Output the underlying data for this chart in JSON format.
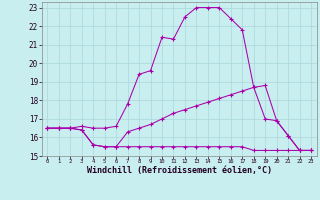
{
  "xlabel": "Windchill (Refroidissement éolien,°C)",
  "xlim": [
    -0.5,
    23.5
  ],
  "ylim": [
    15,
    23.3
  ],
  "yticks": [
    15,
    16,
    17,
    18,
    19,
    20,
    21,
    22,
    23
  ],
  "xticks": [
    0,
    1,
    2,
    3,
    4,
    5,
    6,
    7,
    8,
    9,
    10,
    11,
    12,
    13,
    14,
    15,
    16,
    17,
    18,
    19,
    20,
    21,
    22,
    23
  ],
  "background_color": "#c9eef0",
  "grid_color": "#a8d8dc",
  "line_color": "#aa00aa",
  "line1_y": [
    16.5,
    16.5,
    16.5,
    16.6,
    16.5,
    16.5,
    16.6,
    17.8,
    19.4,
    19.6,
    21.4,
    21.3,
    22.5,
    23.0,
    23.0,
    23.0,
    22.4,
    21.8,
    18.7,
    17.0,
    16.9,
    16.1,
    15.3,
    15.3
  ],
  "line2_y": [
    16.5,
    16.5,
    16.5,
    16.4,
    15.6,
    15.5,
    15.5,
    16.3,
    16.5,
    16.7,
    17.0,
    17.3,
    17.5,
    17.7,
    17.9,
    18.1,
    18.3,
    18.5,
    18.7,
    18.8,
    16.9,
    16.1,
    15.3,
    15.3
  ],
  "line3_y": [
    16.5,
    16.5,
    16.5,
    16.4,
    15.6,
    15.5,
    15.5,
    15.5,
    15.5,
    15.5,
    15.5,
    15.5,
    15.5,
    15.5,
    15.5,
    15.5,
    15.5,
    15.5,
    15.3,
    15.3,
    15.3,
    15.3,
    15.3,
    15.3
  ],
  "ylabel_fontsize": 6,
  "xlabel_fontsize": 6,
  "tick_fontsize": 5.5
}
